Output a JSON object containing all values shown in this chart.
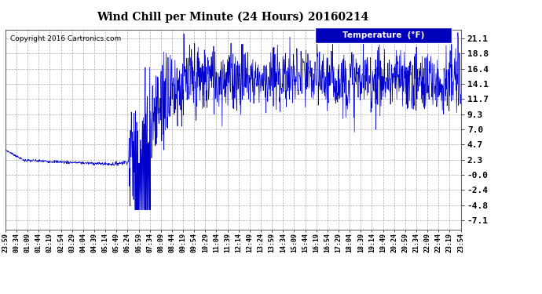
{
  "title": "Wind Chill per Minute (24 Hours) 20160214",
  "copyright_text": "Copyright 2016 Cartronics.com",
  "legend_label": "Temperature  (°F)",
  "legend_bg": "#0000bb",
  "legend_text_color": "#ffffff",
  "line_color": "#0000cc",
  "background_color": "#ffffff",
  "grid_color": "#aaaaaa",
  "yticks": [
    21.1,
    18.8,
    16.4,
    14.1,
    11.7,
    9.3,
    7.0,
    4.7,
    2.3,
    0.0,
    -2.4,
    -4.8,
    -7.1
  ],
  "ytick_labels": [
    "21.1",
    "18.8",
    "16.4",
    "14.1",
    "11.7",
    "9.3",
    "7.0",
    "4.7",
    "2.3",
    "-0.0",
    "-2.4",
    "-4.8",
    "-7.1"
  ],
  "ylim_min": -8.5,
  "ylim_max": 22.5,
  "xtick_labels": [
    "23:59",
    "00:34",
    "01:09",
    "01:44",
    "02:19",
    "02:54",
    "03:29",
    "04:04",
    "04:39",
    "05:14",
    "05:49",
    "06:24",
    "06:59",
    "07:34",
    "08:09",
    "08:44",
    "09:19",
    "09:54",
    "10:29",
    "11:04",
    "11:39",
    "12:14",
    "12:49",
    "13:24",
    "13:59",
    "14:34",
    "15:09",
    "15:44",
    "16:19",
    "16:54",
    "17:29",
    "18:04",
    "18:39",
    "19:14",
    "19:49",
    "20:24",
    "20:59",
    "21:34",
    "22:09",
    "22:44",
    "23:19",
    "23:54"
  ]
}
